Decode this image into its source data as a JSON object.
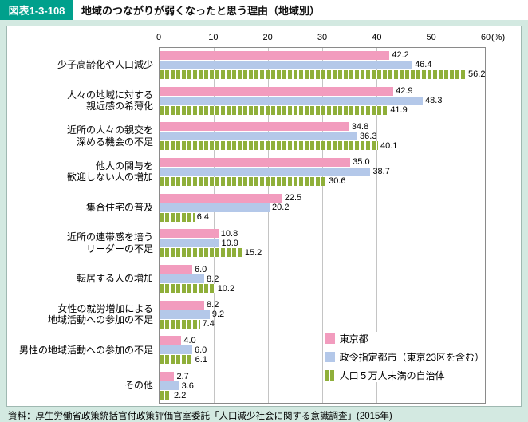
{
  "header": {
    "figure_label": "図表1-3-108",
    "title": "地域のつながりが弱くなったと思う理由（地域別）"
  },
  "footer": {
    "source": "資料：厚生労働省政策統括官付政策評価官室委託「人口減少社会に関する意識調査」(2015年)"
  },
  "colors": {
    "background": "#d3e9e1",
    "header_accent": "#00a08c",
    "series_tokyo": "#f29cbe",
    "series_cities": "#b4c8e9",
    "series_small": "#8faf3a"
  },
  "chart_data": {
    "type": "bar",
    "orientation": "horizontal",
    "title": "地域のつながりが弱くなったと思う理由（地域別）",
    "unit_label": "(%)",
    "xlim": [
      0,
      60
    ],
    "x_ticks": [
      0,
      10,
      20,
      30,
      40,
      50,
      60
    ],
    "grid": true,
    "legend_position": "bottom-right",
    "categories": [
      "少子高齢化や人口減少",
      "人々の地域に対する\n親近感の希薄化",
      "近所の人々の親交を\n深める機会の不足",
      "他人の関与を\n歓迎しない人の増加",
      "集合住宅の普及",
      "近所の連帯感を培う\nリーダーの不足",
      "転居する人の増加",
      "女性の就労増加による\n地域活動への参加の不足",
      "男性の地域活動への参加の不足",
      "その他"
    ],
    "series": [
      {
        "name": "東京都",
        "color_key": "series_tokyo",
        "pattern": "solid",
        "values": [
          42.2,
          42.9,
          34.8,
          35.0,
          22.5,
          10.8,
          6.0,
          8.2,
          4.0,
          2.7
        ]
      },
      {
        "name": "政令指定都市（東京23区を含む）",
        "color_key": "series_cities",
        "pattern": "solid",
        "values": [
          46.4,
          48.3,
          36.3,
          38.7,
          20.2,
          10.9,
          8.2,
          9.2,
          6.0,
          3.6
        ]
      },
      {
        "name": "人口５万人未満の自治体",
        "color_key": "series_small",
        "pattern": "dashed",
        "values": [
          56.2,
          41.9,
          40.1,
          30.6,
          6.4,
          15.2,
          10.2,
          7.4,
          6.1,
          2.2
        ]
      }
    ]
  }
}
